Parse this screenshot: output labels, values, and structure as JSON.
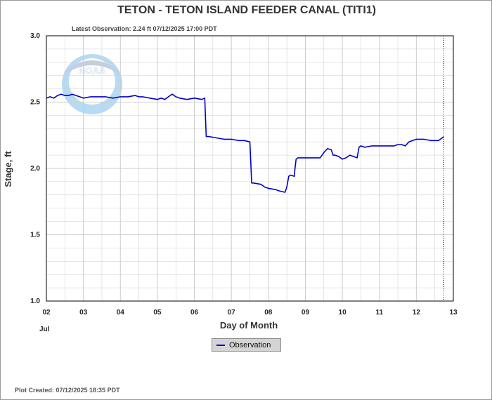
{
  "chart_data": {
    "type": "line",
    "title": "TETON - TETON ISLAND FEEDER CANAL  (TITI1)",
    "subtitle": "Latest Observation: 2.24 ft 07/12/2025 17:00 PDT",
    "xlabel": "Day of Month",
    "ylabel": "Stage, ft",
    "month_label": "Jul",
    "footer": "Plot Created: 07/12/2025 18:35 PDT",
    "xlim": [
      2,
      13
    ],
    "ylim": [
      1.0,
      3.0
    ],
    "x_tick_labels": [
      "02",
      "03",
      "04",
      "05",
      "06",
      "07",
      "08",
      "09",
      "10",
      "11",
      "12",
      "13"
    ],
    "y_tick_labels": [
      "1.0",
      "1.5",
      "2.0",
      "2.5",
      "3.0"
    ],
    "y_ticks": [
      1.0,
      1.5,
      2.0,
      2.5,
      3.0
    ],
    "grid": true,
    "latest_observation_x": 12.74,
    "legend": {
      "label": "Observation",
      "placement": "bottom-center"
    },
    "watermark": "NOAA",
    "colors": {
      "series": "#0000cc",
      "grid": "#cccccc",
      "frame": "#000000"
    },
    "series": [
      {
        "name": "Observation",
        "x": [
          2.0,
          2.1,
          2.2,
          2.3,
          2.4,
          2.5,
          2.6,
          2.7,
          2.8,
          2.9,
          3.0,
          3.2,
          3.4,
          3.6,
          3.8,
          4.0,
          4.2,
          4.4,
          4.5,
          4.6,
          4.8,
          5.0,
          5.1,
          5.2,
          5.3,
          5.4,
          5.5,
          5.6,
          5.8,
          6.0,
          6.2,
          6.28,
          6.32,
          6.4,
          6.6,
          6.8,
          7.0,
          7.2,
          7.35,
          7.5,
          7.55,
          7.6,
          7.8,
          7.9,
          8.0,
          8.2,
          8.3,
          8.45,
          8.5,
          8.55,
          8.6,
          8.7,
          8.72,
          8.75,
          8.8,
          8.9,
          9.0,
          9.2,
          9.4,
          9.5,
          9.6,
          9.7,
          9.75,
          9.8,
          9.9,
          10.0,
          10.1,
          10.2,
          10.3,
          10.4,
          10.45,
          10.5,
          10.6,
          10.8,
          11.0,
          11.2,
          11.4,
          11.5,
          11.6,
          11.7,
          11.8,
          11.9,
          12.0,
          12.2,
          12.4,
          12.5,
          12.6,
          12.7,
          12.74
        ],
        "y": [
          2.53,
          2.54,
          2.53,
          2.55,
          2.56,
          2.55,
          2.55,
          2.56,
          2.55,
          2.54,
          2.53,
          2.54,
          2.54,
          2.54,
          2.53,
          2.54,
          2.54,
          2.55,
          2.54,
          2.54,
          2.53,
          2.52,
          2.53,
          2.52,
          2.54,
          2.56,
          2.54,
          2.53,
          2.52,
          2.53,
          2.52,
          2.53,
          2.24,
          2.24,
          2.23,
          2.22,
          2.22,
          2.21,
          2.21,
          2.2,
          1.89,
          1.89,
          1.88,
          1.86,
          1.85,
          1.84,
          1.83,
          1.82,
          1.86,
          1.94,
          1.95,
          1.94,
          2.0,
          2.07,
          2.08,
          2.08,
          2.08,
          2.08,
          2.08,
          2.12,
          2.15,
          2.14,
          2.1,
          2.1,
          2.09,
          2.07,
          2.08,
          2.1,
          2.09,
          2.08,
          2.16,
          2.17,
          2.16,
          2.17,
          2.17,
          2.17,
          2.17,
          2.18,
          2.18,
          2.17,
          2.2,
          2.21,
          2.22,
          2.22,
          2.21,
          2.21,
          2.21,
          2.23,
          2.24
        ]
      }
    ]
  }
}
